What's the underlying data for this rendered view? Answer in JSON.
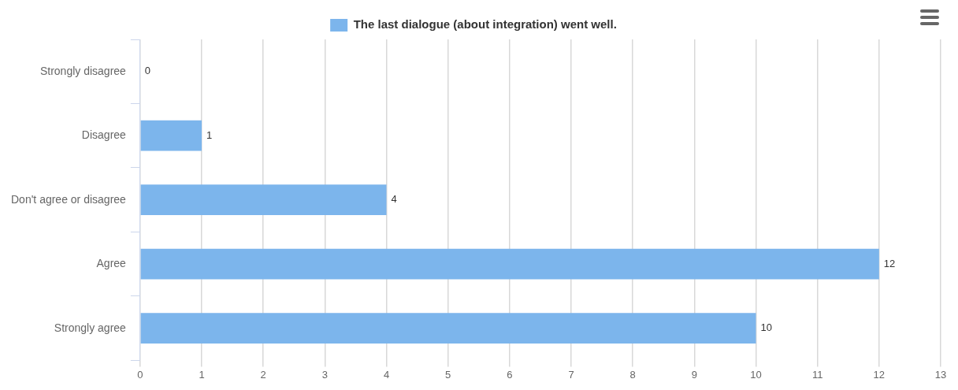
{
  "chart_data": {
    "type": "bar",
    "orientation": "horizontal",
    "categories": [
      "Strongly disagree",
      "Disagree",
      "Don't agree or disagree",
      "Agree",
      "Strongly agree"
    ],
    "series": [
      {
        "name": "The last dialogue (about integration) went well.",
        "color": "#7cb5ec",
        "values": [
          0,
          1,
          4,
          12,
          10
        ]
      }
    ],
    "xlim": [
      0,
      13
    ],
    "xticks": [
      0,
      1,
      2,
      3,
      4,
      5,
      6,
      7,
      8,
      9,
      10,
      11,
      12,
      13
    ],
    "grid": "x",
    "legend": "top",
    "data_labels": true
  }
}
